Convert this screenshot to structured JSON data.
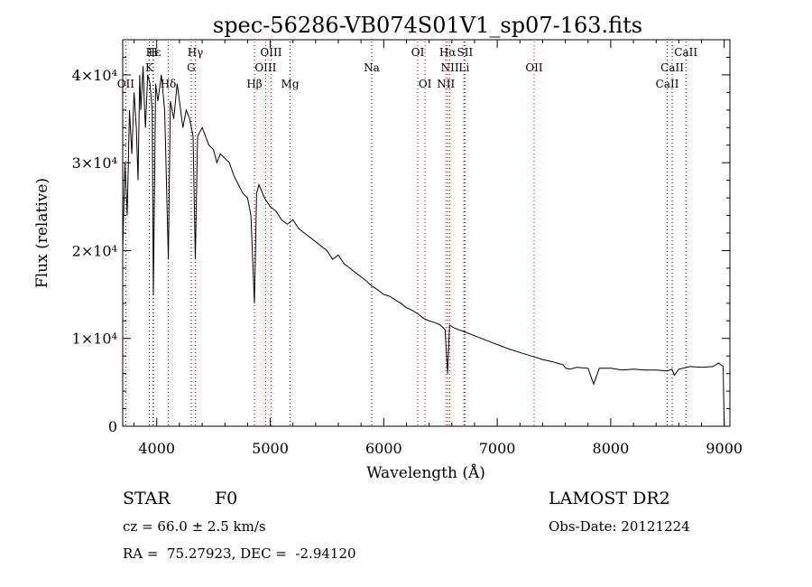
{
  "title": "spec-56286-VB074S01V1_sp07-163.fits",
  "chart_data": {
    "type": "line",
    "title": "spec-56286-VB074S01V1_sp07-163.fits",
    "xlabel": "Wavelength (Å)",
    "ylabel": "Flux (relative)",
    "xlim": [
      3700,
      9050
    ],
    "ylim": [
      0,
      44000
    ],
    "x_ticks": [
      4000,
      5000,
      6000,
      7000,
      8000,
      9000
    ],
    "y_ticks": [
      {
        "value": 0,
        "label": "0"
      },
      {
        "value": 10000,
        "label": "1×10⁴"
      },
      {
        "value": 20000,
        "label": "2×10⁴"
      },
      {
        "value": 30000,
        "label": "3×10⁴"
      },
      {
        "value": 40000,
        "label": "4×10⁴"
      }
    ],
    "grid": false,
    "series": [
      {
        "x": [
          3700,
          3720,
          3740,
          3760,
          3780,
          3800,
          3820,
          3835,
          3850,
          3860,
          3880,
          3890,
          3900,
          3920,
          3940,
          3960,
          3970,
          3990,
          4010,
          4040,
          4070,
          4102,
          4120,
          4150,
          4180,
          4200,
          4230,
          4260,
          4290,
          4320,
          4340,
          4360,
          4400,
          4430,
          4460,
          4500,
          4530,
          4560,
          4600,
          4640,
          4680,
          4720,
          4760,
          4800,
          4830,
          4861,
          4880,
          4900,
          4950,
          5000,
          5050,
          5100,
          5150,
          5200,
          5250,
          5300,
          5350,
          5400,
          5450,
          5500,
          5550,
          5600,
          5650,
          5700,
          5750,
          5800,
          5850,
          5890,
          5950,
          6000,
          6050,
          6100,
          6150,
          6200,
          6250,
          6300,
          6350,
          6400,
          6450,
          6500,
          6540,
          6563,
          6580,
          6620,
          6700,
          6800,
          6900,
          7000,
          7100,
          7200,
          7300,
          7400,
          7500,
          7580,
          7605,
          7640,
          7700,
          7800,
          7850,
          7900,
          8000,
          8100,
          8200,
          8300,
          8400,
          8500,
          8540,
          8560,
          8600,
          8700,
          8800,
          8900,
          8950,
          8990,
          9000
        ],
        "y": [
          20000,
          30000,
          24000,
          36000,
          31000,
          38000,
          34000,
          28000,
          40000,
          36000,
          41000,
          37000,
          34000,
          40000,
          39000,
          36000,
          15000,
          39000,
          37000,
          40000,
          36000,
          19000,
          37000,
          35000,
          39000,
          37000,
          34000,
          36000,
          35000,
          33000,
          19000,
          33000,
          34000,
          33000,
          32000,
          31500,
          30000,
          31000,
          30500,
          30000,
          28500,
          27500,
          26500,
          26000,
          24000,
          14000,
          26500,
          27500,
          26000,
          25000,
          24500,
          23500,
          23000,
          23500,
          22500,
          22000,
          21500,
          21000,
          20500,
          20000,
          19000,
          19500,
          18500,
          18000,
          17500,
          17000,
          16500,
          16000,
          15500,
          15000,
          14800,
          14400,
          14000,
          13500,
          13200,
          12800,
          12300,
          12000,
          11800,
          11500,
          11000,
          6000,
          11500,
          11200,
          10800,
          10300,
          9800,
          9300,
          8800,
          8400,
          8000,
          7600,
          7300,
          7000,
          6600,
          6500,
          6700,
          6600,
          4800,
          6600,
          6600,
          6400,
          6500,
          6400,
          6400,
          6300,
          6500,
          5800,
          6500,
          6800,
          6700,
          6800,
          7200,
          6800,
          0
        ]
      }
    ],
    "line_labels": [
      {
        "label": "Hε",
        "wave": 3970,
        "row": 1,
        "color": "red"
      },
      {
        "label": "Hδ",
        "wave": 4102,
        "row": 3,
        "color": "red"
      },
      {
        "label": "Hγ",
        "wave": 4340,
        "row": 1,
        "color": "red"
      },
      {
        "label": "Hβ",
        "wave": 4861,
        "row": 3,
        "color": "red"
      },
      {
        "label": "Hα",
        "wave": 6563,
        "row": 1,
        "color": "red"
      },
      {
        "label": "OII",
        "wave": 3727,
        "row": 3,
        "color": "red"
      },
      {
        "label": "OIII",
        "wave": 4959,
        "row": 2,
        "color": "red"
      },
      {
        "label": "OIII",
        "wave": 5007,
        "row": 1,
        "color": "red"
      },
      {
        "label": "OI",
        "wave": 6300,
        "row": 1,
        "color": "red"
      },
      {
        "label": "OI",
        "wave": 6364,
        "row": 3,
        "color": "red"
      },
      {
        "label": "NII",
        "wave": 6548,
        "row": 3,
        "color": "red"
      },
      {
        "label": "NII",
        "wave": 6583,
        "row": 2,
        "color": "red"
      },
      {
        "label": "SII",
        "wave": 6716,
        "row": 1,
        "color": "red"
      },
      {
        "label": "OII",
        "wave": 7325,
        "row": 2,
        "color": "red"
      },
      {
        "label": "H",
        "wave": 3968,
        "row": 1,
        "color": "black"
      },
      {
        "label": "K",
        "wave": 3934,
        "row": 2,
        "color": "black"
      },
      {
        "label": "G",
        "wave": 4304,
        "row": 2,
        "color": "black"
      },
      {
        "label": "Mg",
        "wave": 5175,
        "row": 3,
        "color": "black"
      },
      {
        "label": "Na",
        "wave": 5894,
        "row": 2,
        "color": "black"
      },
      {
        "label": "Li",
        "wave": 6707,
        "row": 2,
        "color": "black"
      },
      {
        "label": "CaII",
        "wave": 8498,
        "row": 3,
        "color": "black"
      },
      {
        "label": "CaII",
        "wave": 8542,
        "row": 2,
        "color": "black"
      },
      {
        "label": "CaII",
        "wave": 8662,
        "row": 1,
        "color": "black"
      }
    ]
  },
  "info": {
    "object_class": "STAR",
    "subclass": "F0",
    "survey": "LAMOST DR2",
    "redshift": "cz = 66.0 ± 2.5 km/s",
    "obs_date": "Obs-Date: 20121224",
    "coords": "RA =  75.27923, DEC =  -2.94120"
  }
}
